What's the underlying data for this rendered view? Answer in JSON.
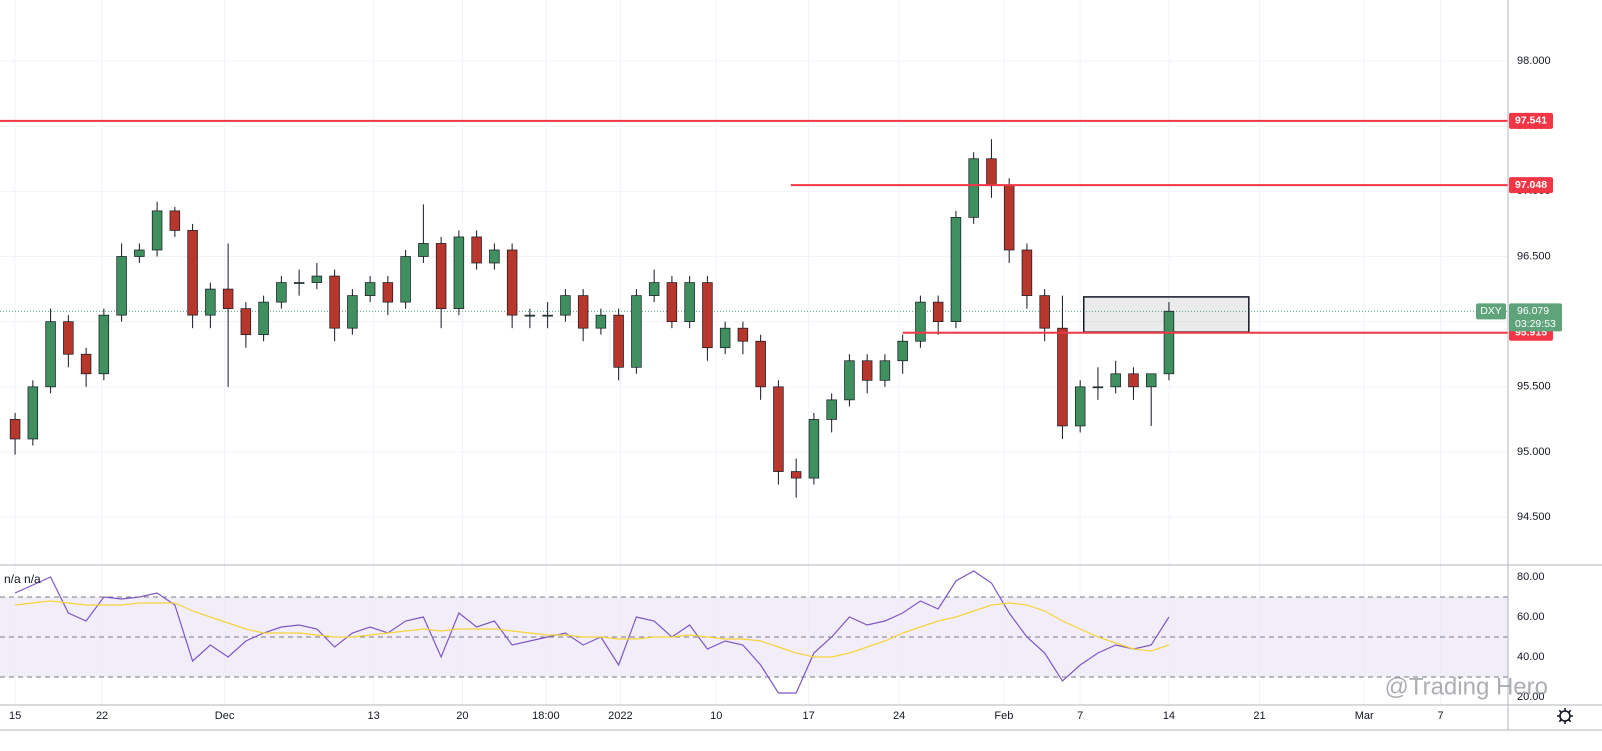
{
  "chart_data": [
    {
      "type": "candlestick",
      "symbol": "DXY",
      "x": [
        0,
        1,
        2,
        3,
        4,
        5,
        6,
        7,
        8,
        9,
        10,
        11,
        12,
        13,
        14,
        15,
        16,
        17,
        18,
        19,
        20,
        21,
        22,
        23,
        24,
        25,
        26,
        27,
        28,
        29,
        30,
        31,
        32,
        33,
        34,
        35,
        36,
        37,
        38,
        39,
        40,
        41,
        42,
        43,
        44,
        45,
        46,
        47,
        48,
        49,
        50,
        51,
        52,
        53,
        54,
        55,
        56,
        57,
        58,
        59,
        60,
        61,
        62,
        63,
        64,
        65
      ],
      "open": [
        95.25,
        95.1,
        95.5,
        96.0,
        95.75,
        95.6,
        96.05,
        96.5,
        96.55,
        96.85,
        96.7,
        96.05,
        96.25,
        96.1,
        95.9,
        96.15,
        96.3,
        96.3,
        96.35,
        95.95,
        96.2,
        96.3,
        96.15,
        96.5,
        96.6,
        96.1,
        96.65,
        96.45,
        96.55,
        96.05,
        96.05,
        96.05,
        96.2,
        95.95,
        96.05,
        95.65,
        96.2,
        96.3,
        96.0,
        96.3,
        95.8,
        95.95,
        95.85,
        95.5,
        94.85,
        94.8,
        95.25,
        95.4,
        95.7,
        95.55,
        95.7,
        95.85,
        96.15,
        96.0,
        96.8,
        97.25,
        97.05,
        96.55,
        96.2,
        95.95,
        95.2,
        95.5,
        95.5,
        95.6,
        95.5,
        95.6
      ],
      "high": [
        95.3,
        95.55,
        96.1,
        96.05,
        95.8,
        96.1,
        96.6,
        96.6,
        96.92,
        96.88,
        96.75,
        96.3,
        96.6,
        96.15,
        96.2,
        96.35,
        96.4,
        96.45,
        96.4,
        96.25,
        96.35,
        96.35,
        96.55,
        96.9,
        96.65,
        96.7,
        96.7,
        96.6,
        96.6,
        96.1,
        96.15,
        96.25,
        96.25,
        96.1,
        96.1,
        96.25,
        96.4,
        96.35,
        96.35,
        96.35,
        96.0,
        96.0,
        95.9,
        95.55,
        94.95,
        95.3,
        95.45,
        95.75,
        95.75,
        95.75,
        95.9,
        96.2,
        96.2,
        96.85,
        97.3,
        97.4,
        97.1,
        96.6,
        96.25,
        96.2,
        95.55,
        95.65,
        95.7,
        95.65,
        95.6,
        96.15
      ],
      "low": [
        94.98,
        95.05,
        95.45,
        95.65,
        95.5,
        95.55,
        96.0,
        96.45,
        96.5,
        96.65,
        95.95,
        95.95,
        95.5,
        95.8,
        95.85,
        96.1,
        96.2,
        96.25,
        95.85,
        95.9,
        96.15,
        96.05,
        96.1,
        96.45,
        95.95,
        96.05,
        96.4,
        96.4,
        95.95,
        95.95,
        95.95,
        96.0,
        95.85,
        95.9,
        95.55,
        95.6,
        96.15,
        95.95,
        95.95,
        95.7,
        95.75,
        95.75,
        95.4,
        94.75,
        94.65,
        94.75,
        95.15,
        95.35,
        95.45,
        95.5,
        95.6,
        95.8,
        95.9,
        95.95,
        96.75,
        96.95,
        96.45,
        96.1,
        95.85,
        95.1,
        95.15,
        95.4,
        95.45,
        95.4,
        95.2,
        95.55
      ],
      "close": [
        95.1,
        95.5,
        96.0,
        95.75,
        95.6,
        96.05,
        96.5,
        96.55,
        96.85,
        96.7,
        96.05,
        96.25,
        96.1,
        95.9,
        96.15,
        96.3,
        96.3,
        96.35,
        95.95,
        96.2,
        96.3,
        96.15,
        96.5,
        96.6,
        96.1,
        96.65,
        96.45,
        96.55,
        96.05,
        96.05,
        96.05,
        96.2,
        95.95,
        96.05,
        95.65,
        96.2,
        96.3,
        96.0,
        96.3,
        95.8,
        95.95,
        95.85,
        95.5,
        94.85,
        94.8,
        95.25,
        95.4,
        95.7,
        95.55,
        95.7,
        95.85,
        96.15,
        96.0,
        96.8,
        97.25,
        97.05,
        96.55,
        96.2,
        95.95,
        95.2,
        95.5,
        95.5,
        95.6,
        95.5,
        95.6,
        96.08
      ],
      "up_color": "#3f8f5f",
      "down_color": "#b8372d",
      "xlim": [
        -0.85,
        84.1
      ],
      "xticks": [
        {
          "value": 0,
          "label": "15"
        },
        {
          "value": 4.9,
          "label": "22"
        },
        {
          "value": 11.8,
          "label": "Dec"
        },
        {
          "value": 20.2,
          "label": "13"
        },
        {
          "value": 25.2,
          "label": "20"
        },
        {
          "value": 29.9,
          "label": "18:00"
        },
        {
          "value": 34.1,
          "label": "2022"
        },
        {
          "value": 39.5,
          "label": "10"
        },
        {
          "value": 44.7,
          "label": "17"
        },
        {
          "value": 49.8,
          "label": "24"
        },
        {
          "value": 55.7,
          "label": "Feb"
        },
        {
          "value": 60,
          "label": "7"
        },
        {
          "value": 65,
          "label": "14"
        },
        {
          "value": 70.1,
          "label": "21"
        },
        {
          "value": 76,
          "label": "Mar"
        },
        {
          "value": 80.3,
          "label": "7"
        }
      ],
      "ylim": [
        94.133,
        98.468
      ],
      "yticks": [
        {
          "value": 94.5,
          "label": "94.500"
        },
        {
          "value": 95,
          "label": "95.000"
        },
        {
          "value": 95.5,
          "label": "95.500"
        },
        {
          "value": 96,
          "label": "96.000"
        },
        {
          "value": 96.5,
          "label": "96.500"
        },
        {
          "value": 97,
          "label": "97.000"
        },
        {
          "value": 97.5,
          "label": "97.500"
        },
        {
          "value": 98,
          "label": "98.000"
        }
      ],
      "grid": true,
      "levels": [
        {
          "value": 97.541,
          "from": -0.85,
          "color": "#f23645"
        },
        {
          "value": 97.048,
          "from": 43.7,
          "color": "#f23645"
        },
        {
          "value": 95.915,
          "from": 50,
          "color": "#f23645"
        }
      ],
      "zone": {
        "x": [
          60.2,
          69.5
        ],
        "y": [
          95.92,
          96.19
        ]
      },
      "last_price": 96.079,
      "countdown": "03:29:53",
      "last_color": "#5fa37a",
      "watermark": "@Trading Hero"
    },
    {
      "type": "line",
      "legend": "n/a n/a",
      "x": [
        0,
        1,
        2,
        3,
        4,
        5,
        6,
        7,
        8,
        9,
        10,
        11,
        12,
        13,
        14,
        15,
        16,
        17,
        18,
        19,
        20,
        21,
        22,
        23,
        24,
        25,
        26,
        27,
        28,
        29,
        30,
        31,
        32,
        33,
        34,
        35,
        36,
        37,
        38,
        39,
        40,
        41,
        42,
        43,
        44,
        45,
        46,
        47,
        48,
        49,
        50,
        51,
        52,
        53,
        54,
        55,
        56,
        57,
        58,
        59,
        60,
        61,
        62,
        63,
        64,
        65
      ],
      "series": [
        {
          "color": "#7e57c2",
          "values": [
            72,
            76,
            80,
            62,
            58,
            70,
            69,
            70,
            72,
            66,
            38,
            46,
            40,
            48,
            52,
            55,
            56,
            54,
            45,
            52,
            55,
            52,
            58,
            60,
            40,
            62,
            55,
            58,
            46,
            48,
            50,
            52,
            46,
            50,
            36,
            60,
            58,
            50,
            56,
            44,
            48,
            46,
            36,
            22,
            22,
            42,
            50,
            60,
            56,
            58,
            62,
            68,
            64,
            78,
            83,
            77,
            62,
            50,
            42,
            28,
            36,
            42,
            46,
            44,
            46,
            60
          ]
        },
        {
          "color": "#f5d33b",
          "values": [
            66,
            67,
            68,
            67,
            66,
            66,
            66,
            67,
            67,
            67,
            63,
            60,
            57,
            54,
            52,
            52,
            52,
            51,
            50,
            50,
            51,
            52,
            53,
            54,
            53,
            54,
            54,
            54,
            53,
            52,
            51,
            51,
            50,
            50,
            49,
            49,
            50,
            50,
            51,
            50,
            49,
            49,
            48,
            45,
            42,
            40,
            40,
            42,
            45,
            48,
            52,
            55,
            58,
            60,
            63,
            66,
            67,
            66,
            63,
            58,
            54,
            50,
            47,
            44,
            43,
            46
          ]
        }
      ],
      "xlim": [
        -0.85,
        84.1
      ],
      "ylim": [
        16,
        86
      ],
      "yticks": [
        {
          "value": 20,
          "label": "20.00"
        },
        {
          "value": 40,
          "label": "40.00"
        },
        {
          "value": 60,
          "label": "60.00"
        },
        {
          "value": 80,
          "label": "80.00"
        }
      ],
      "bands": [
        30,
        50,
        70
      ],
      "band_fill": "#ede7f6"
    }
  ]
}
